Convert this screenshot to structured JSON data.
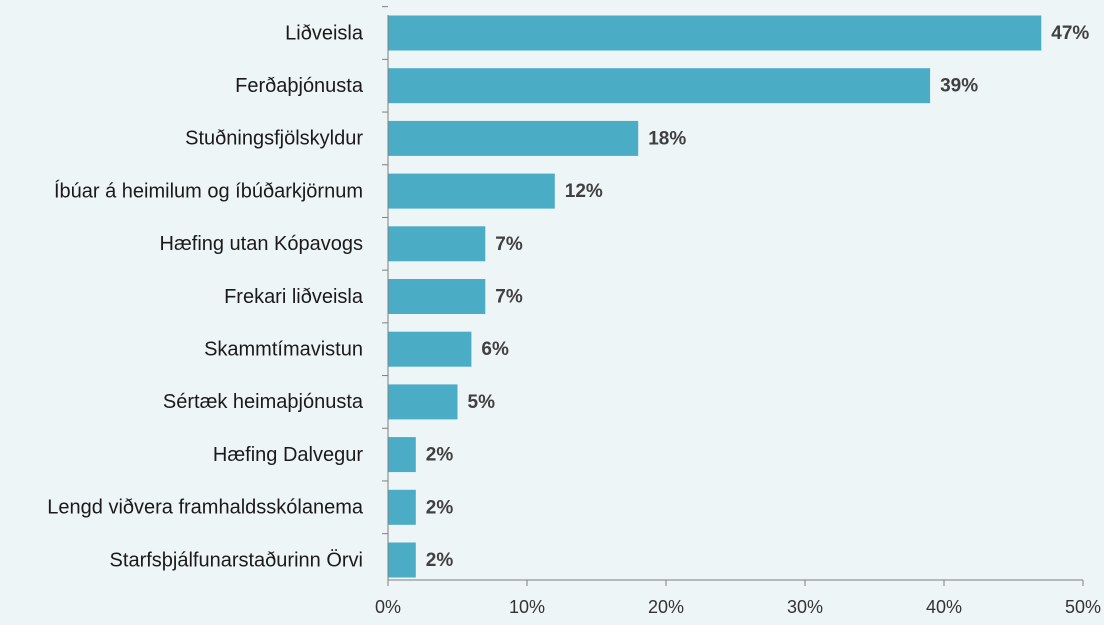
{
  "chart_data": {
    "type": "bar",
    "orientation": "horizontal",
    "categories": [
      "Liðveisla",
      "Ferðaþjónusta",
      "Stuðningsfjölskyldur",
      "Íbúar á heimilum og íbúðarkjörnum",
      "Hæfing utan Kópavogs",
      "Frekari liðveisla",
      "Skammtímavistun",
      "Sértæk heimaþjónusta",
      "Hæfing Dalvegur",
      "Lengd viðvera framhaldsskólanema",
      "Starfsþjálfunarstaðurinn Örvi"
    ],
    "values": [
      47,
      39,
      18,
      12,
      7,
      7,
      6,
      5,
      2,
      2,
      2
    ],
    "value_labels": [
      "47%",
      "39%",
      "18%",
      "12%",
      "7%",
      "7%",
      "6%",
      "5%",
      "2%",
      "2%",
      "2%"
    ],
    "color": "#4bacc6",
    "xlim": [
      0,
      50
    ],
    "xticks": [
      {
        "value": 0,
        "label": "0%"
      },
      {
        "value": 10,
        "label": "10%"
      },
      {
        "value": 20,
        "label": "20%"
      },
      {
        "value": 30,
        "label": "30%"
      },
      {
        "value": 40,
        "label": "40%"
      },
      {
        "value": 50,
        "label": "50%"
      }
    ],
    "grid": false
  }
}
